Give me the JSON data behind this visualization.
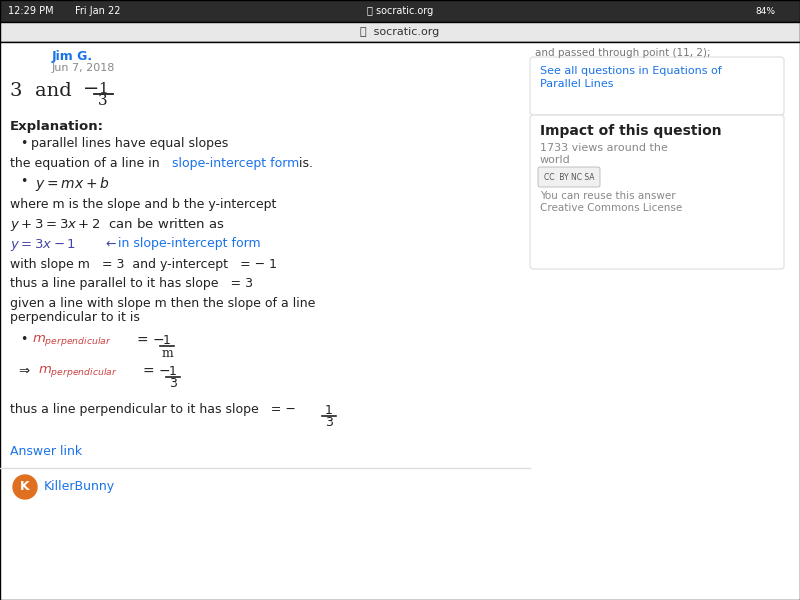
{
  "status_time": "12:29 PM",
  "status_date": "Fri Jan 22",
  "status_url": "socratic.org",
  "status_battery": "84%",
  "author_name": "Jim G.",
  "author_date": "Jun 7, 2018",
  "sidebar_top_text": "and passed through point (11, 2);",
  "sidebar_link_line1": "See all questions in Equations of",
  "sidebar_link_line2": "Parallel Lines",
  "sidebar_title": "Impact of this question",
  "sidebar_views": "1733 views around the",
  "sidebar_views2": "world",
  "sidebar_license": "CC  BY NC SA",
  "sidebar_reuse1": "You can reuse this answer",
  "sidebar_reuse2": "Creative Commons License",
  "explanation_label": "Explanation:",
  "bullet1": "parallel lines have equal slopes",
  "text1a": "the equation of a line in",
  "text1_link": "slope-intercept form",
  "text1b": "is.",
  "text2": "where m is the slope and b the y-intercept",
  "eq1": "y + 3 = 3x + 2  can be written as",
  "text3": "with slope m   = 3  and y-intercept   = − 1",
  "text4": "thus a line parallel to it has slope   = 3",
  "text5a": "given a line with slope m then the slope of a line",
  "text5b": "perpendicular to it is",
  "answer_link": "Answer link",
  "answerer2": "KillerBunny",
  "status_bg": "#2c2c2c",
  "page_bg": "#ffffff",
  "nav_bg": "#e8e8e8",
  "author_color": "#1a73e8",
  "link_color": "#1a73e8",
  "blue_eq_color": "#4444aa",
  "perp_color": "#cc4444",
  "text_color": "#222222",
  "gray_color": "#888888",
  "sidebar_border": "#dddddd"
}
